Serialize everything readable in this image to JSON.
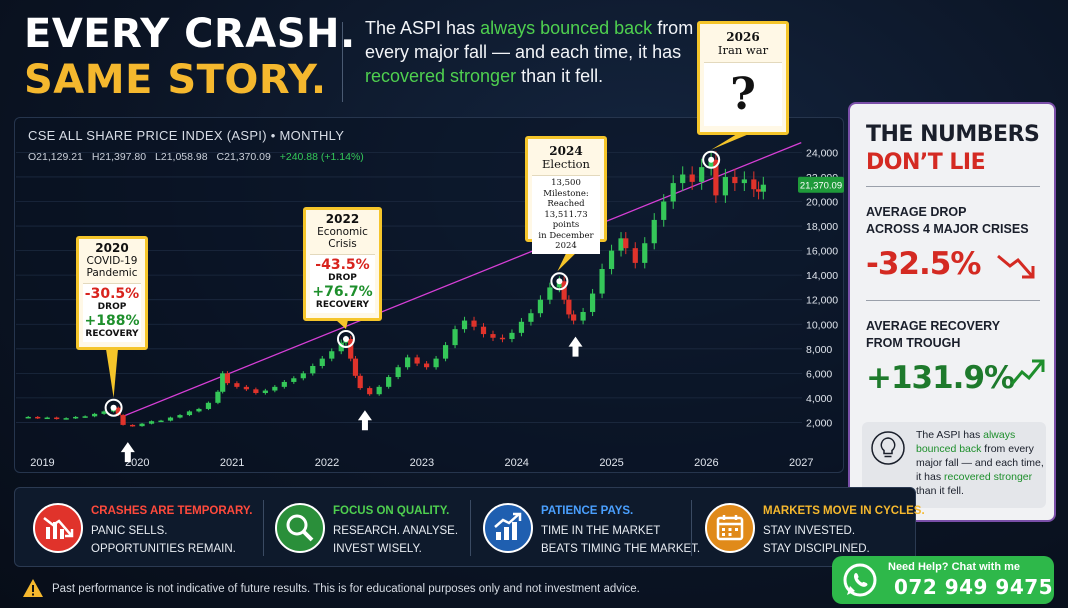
{
  "headline": {
    "line1": "EVERY CRASH.",
    "line2": "SAME STORY."
  },
  "tagline": {
    "p1": "The ASPI has ",
    "g1": "always bounced back",
    "p2": " from every major fall — and each time, it has ",
    "g2": "recovered stronger",
    "p3": " than it fell."
  },
  "chart": {
    "title": "CSE ALL SHARE PRICE INDEX (ASPI) • MONTHLY",
    "ohlc": {
      "o": "O21,129.21",
      "h": "H21,397.80",
      "l": "L21,058.98",
      "c": "C21,370.09",
      "chg": "+240.88 (+1.14%)"
    },
    "last_price_label": "21,370.09"
  },
  "chart_data": {
    "type": "candlestick",
    "title": "CSE ALL SHARE PRICE INDEX (ASPI) • MONTHLY",
    "x_ticks": [
      "2019",
      "2020",
      "2021",
      "2022",
      "2023",
      "2024",
      "2025",
      "2026",
      "2027"
    ],
    "y_ticks": [
      2000,
      4000,
      6000,
      8000,
      10000,
      12000,
      14000,
      16000,
      18000,
      20000,
      22000,
      24000
    ],
    "y_tick_labels": [
      "2,000",
      "4,000",
      "6,000",
      "8,000",
      "10,000",
      "12,000",
      "14,000",
      "16,000",
      "18,000",
      "20,000",
      "22,000",
      "24,000"
    ],
    "ylim": [
      0,
      25500
    ],
    "xlim": [
      2018.7,
      2027.05
    ],
    "last_close": 21370.09,
    "trendline": {
      "x": [
        2019.85,
        2027.0
      ],
      "y": [
        2500,
        24800
      ]
    },
    "series_close": [
      [
        2018.75,
        2400
      ],
      [
        2018.85,
        2450
      ],
      [
        2018.95,
        2350
      ],
      [
        2019.05,
        2400
      ],
      [
        2019.15,
        2300
      ],
      [
        2019.25,
        2350
      ],
      [
        2019.35,
        2450
      ],
      [
        2019.45,
        2500
      ],
      [
        2019.55,
        2700
      ],
      [
        2019.65,
        2900
      ],
      [
        2019.75,
        3200
      ],
      [
        2019.8,
        2600
      ],
      [
        2019.85,
        1800
      ],
      [
        2019.95,
        1700
      ],
      [
        2020.05,
        1900
      ],
      [
        2020.15,
        2100
      ],
      [
        2020.25,
        2150
      ],
      [
        2020.35,
        2400
      ],
      [
        2020.45,
        2600
      ],
      [
        2020.55,
        2900
      ],
      [
        2020.65,
        3100
      ],
      [
        2020.75,
        3600
      ],
      [
        2020.85,
        4500
      ],
      [
        2020.9,
        6000
      ],
      [
        2020.95,
        5200
      ],
      [
        2021.05,
        4900
      ],
      [
        2021.15,
        4700
      ],
      [
        2021.25,
        4400
      ],
      [
        2021.35,
        4600
      ],
      [
        2021.45,
        4900
      ],
      [
        2021.55,
        5300
      ],
      [
        2021.65,
        5600
      ],
      [
        2021.75,
        6000
      ],
      [
        2021.85,
        6600
      ],
      [
        2021.95,
        7200
      ],
      [
        2022.05,
        7800
      ],
      [
        2022.15,
        8500
      ],
      [
        2022.2,
        8800
      ],
      [
        2022.25,
        7200
      ],
      [
        2022.3,
        5800
      ],
      [
        2022.35,
        4800
      ],
      [
        2022.45,
        4300
      ],
      [
        2022.55,
        4900
      ],
      [
        2022.65,
        5700
      ],
      [
        2022.75,
        6500
      ],
      [
        2022.85,
        7300
      ],
      [
        2022.95,
        6800
      ],
      [
        2023.05,
        6500
      ],
      [
        2023.15,
        7200
      ],
      [
        2023.25,
        8300
      ],
      [
        2023.35,
        9600
      ],
      [
        2023.45,
        10300
      ],
      [
        2023.55,
        9800
      ],
      [
        2023.65,
        9200
      ],
      [
        2023.75,
        8900
      ],
      [
        2023.85,
        8800
      ],
      [
        2023.95,
        9300
      ],
      [
        2024.05,
        10200
      ],
      [
        2024.15,
        10900
      ],
      [
        2024.25,
        12000
      ],
      [
        2024.35,
        13000
      ],
      [
        2024.45,
        13500
      ],
      [
        2024.5,
        12000
      ],
      [
        2024.55,
        10800
      ],
      [
        2024.6,
        10300
      ],
      [
        2024.7,
        11000
      ],
      [
        2024.8,
        12500
      ],
      [
        2024.9,
        14500
      ],
      [
        2025.0,
        16000
      ],
      [
        2025.1,
        17000
      ],
      [
        2025.15,
        16200
      ],
      [
        2025.25,
        15000
      ],
      [
        2025.35,
        16600
      ],
      [
        2025.45,
        18500
      ],
      [
        2025.55,
        20000
      ],
      [
        2025.65,
        21500
      ],
      [
        2025.75,
        22200
      ],
      [
        2025.85,
        21600
      ],
      [
        2025.95,
        22800
      ],
      [
        2026.05,
        23400
      ],
      [
        2026.1,
        20500
      ],
      [
        2026.2,
        22000
      ],
      [
        2026.3,
        21500
      ],
      [
        2026.4,
        21800
      ],
      [
        2026.5,
        21000
      ],
      [
        2026.55,
        20800
      ],
      [
        2026.6,
        21370
      ]
    ],
    "crisis_markers": [
      {
        "x": 2019.75,
        "y": 3200
      },
      {
        "x": 2022.2,
        "y": 8800
      },
      {
        "x": 2024.45,
        "y": 13500
      },
      {
        "x": 2026.05,
        "y": 23400
      }
    ],
    "recovery_arrows": [
      {
        "x": 2019.9,
        "y": 1700
      },
      {
        "x": 2022.4,
        "y": 4300
      },
      {
        "x": 2024.62,
        "y": 10300
      }
    ]
  },
  "callouts": {
    "c2020": {
      "year": "2020",
      "event1": "COVID-19",
      "event2": "Pandemic",
      "drop": "-30.5%",
      "drop_lbl": "DROP",
      "rec": "+188%",
      "rec_lbl": "RECOVERY"
    },
    "c2022": {
      "year": "2022",
      "event1": "Economic",
      "event2": "Crisis",
      "drop": "-43.5%",
      "drop_lbl": "DROP",
      "rec": "+76.7%",
      "rec_lbl": "RECOVERY"
    },
    "c2024": {
      "year": "2024",
      "event": "Election",
      "n1": "13,500 Milestone:",
      "n2": "Reached 13,511.73",
      "n3": "points",
      "n4": "in December 2024"
    },
    "c2026": {
      "year": "2026",
      "event": "Iran war",
      "q": "?"
    }
  },
  "panel": {
    "title1": "THE NUMBERS",
    "title2": "DON’T LIE",
    "avg_drop_lbl1": "AVERAGE DROP",
    "avg_drop_lbl2": "ACROSS 4 MAJOR CRISES",
    "avg_drop": "-32.5%",
    "avg_rec_lbl1": "AVERAGE RECOVERY",
    "avg_rec_lbl2": "FROM TROUGH",
    "avg_rec": "+131.9%",
    "note_p1": "The ASPI has ",
    "note_g1": "always bounced back",
    "note_p2": " from every major fall — and each time, it has ",
    "note_g2": "recovered stronger",
    "note_p3": " than it fell."
  },
  "tips": [
    {
      "head": "CRASHES ARE TEMPORARY.",
      "b1": "PANIC SELLS.",
      "b2": "OPPORTUNITIES REMAIN.",
      "color": "#e0332b",
      "head_color": "#ff4a3c"
    },
    {
      "head": "FOCUS ON QUALITY.",
      "b1": "RESEARCH. ANALYSE.",
      "b2": "INVEST WISELY.",
      "color": "#2a8f3a",
      "head_color": "#4fd04f"
    },
    {
      "head": "PATIENCE PAYS.",
      "b1": "TIME IN THE MARKET",
      "b2": "BEATS TIMING THE MARKET.",
      "color": "#1f5fb0",
      "head_color": "#4aa0ff"
    },
    {
      "head": "MARKETS MOVE IN CYCLES.",
      "b1": "STAY INVESTED.",
      "b2": "STAY DISCIPLINED.",
      "color": "#e08a1a",
      "head_color": "#f5b82e"
    }
  ],
  "disclaimer": "Past performance is not indicative of future results. This is for educational purposes only and not investment advice.",
  "whatsapp": {
    "help": "Need Help? Chat with me",
    "number": "072 949 9475"
  },
  "colors": {
    "up": "#35c759",
    "down": "#e0332b",
    "trend": "#d63fd6",
    "gold": "#f5b82e"
  }
}
